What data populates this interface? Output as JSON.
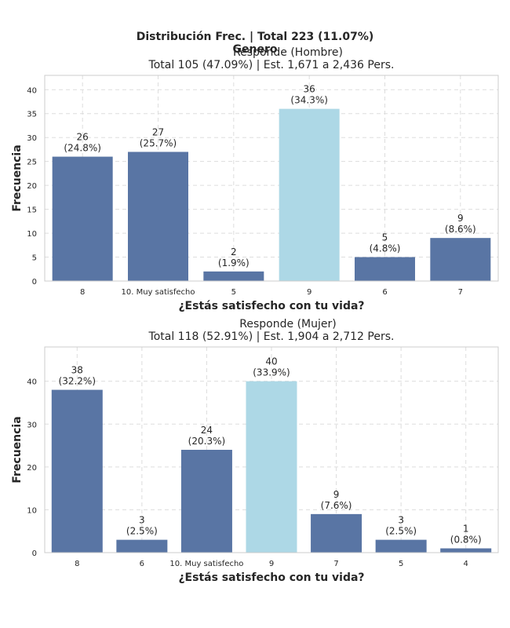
{
  "figure": {
    "title": "Distribución Frec. | Total 223 (11.07%)",
    "overlay_label": "Genero"
  },
  "colors": {
    "bar": "#5975a4",
    "highlight": "#add8e6"
  },
  "chart_data": [
    {
      "type": "bar",
      "title": "Responde (Hombre)",
      "subtitle": "Total 105 (47.09%) | Est. 1,671 a 2,436 Pers.",
      "xlabel": "¿Estás satisfecho con tu vida?",
      "ylabel": "Frecuencia",
      "categories": [
        "8",
        "10. Muy satisfecho",
        "5",
        "9",
        "6",
        "7"
      ],
      "values": [
        26,
        27,
        2,
        36,
        5,
        9
      ],
      "labels": [
        "(24.8%)",
        "(25.7%)",
        "(1.9%)",
        "(34.3%)",
        "(4.8%)",
        "(8.6%)"
      ],
      "highlight": "9",
      "ylim": [
        0,
        43
      ],
      "yticks": [
        0,
        5,
        10,
        15,
        20,
        25,
        30,
        35,
        40
      ],
      "grid": true
    },
    {
      "type": "bar",
      "title": "Responde (Mujer)",
      "subtitle": "Total 118 (52.91%) | Est. 1,904 a 2,712 Pers.",
      "xlabel": "¿Estás satisfecho con tu vida?",
      "ylabel": "Frecuencia",
      "categories": [
        "8",
        "6",
        "10. Muy satisfecho",
        "9",
        "7",
        "5",
        "4"
      ],
      "values": [
        38,
        3,
        24,
        40,
        9,
        3,
        1
      ],
      "labels": [
        "(32.2%)",
        "(2.5%)",
        "(20.3%)",
        "(33.9%)",
        "(7.6%)",
        "(2.5%)",
        "(0.8%)"
      ],
      "highlight": "9",
      "ylim": [
        0,
        48
      ],
      "yticks": [
        0,
        10,
        20,
        30,
        40
      ],
      "grid": true
    }
  ]
}
